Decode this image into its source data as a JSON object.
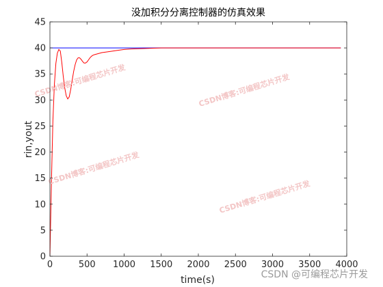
{
  "chart_data": {
    "type": "line",
    "title": "没加积分分离控制器的仿真效果",
    "xlabel": "time(s)",
    "ylabel": "rin,yout",
    "xlim": [
      0,
      4000
    ],
    "ylim": [
      0,
      45
    ],
    "xticks": [
      0,
      500,
      1000,
      1500,
      2000,
      2500,
      3000,
      3500,
      4000
    ],
    "yticks": [
      0,
      5,
      10,
      15,
      20,
      25,
      30,
      35,
      40,
      45
    ],
    "grid": false,
    "series": [
      {
        "color": "#0000ff",
        "x": [
          0,
          3920
        ],
        "y": [
          40,
          40
        ]
      },
      {
        "color": "#ff0000",
        "x": [
          0,
          20,
          40,
          60,
          80,
          100,
          120,
          140,
          160,
          180,
          200,
          220,
          240,
          260,
          280,
          300,
          320,
          340,
          360,
          380,
          400,
          420,
          440,
          460,
          480,
          500,
          520,
          540,
          560,
          580,
          600,
          650,
          700,
          750,
          800,
          900,
          1000,
          1100,
          1200,
          1300,
          1400,
          1500,
          1600,
          1700,
          1800,
          2000,
          2500,
          3000,
          3500,
          3920
        ],
        "y": [
          0,
          14,
          26,
          33,
          37,
          39,
          39.7,
          39.4,
          37.2,
          34.5,
          32.3,
          30.8,
          30.2,
          30.6,
          32,
          33.8,
          35.5,
          36.8,
          37.7,
          38.1,
          38.1,
          37.8,
          37.4,
          37.1,
          37.1,
          37.3,
          37.7,
          38.1,
          38.4,
          38.6,
          38.7,
          38.9,
          39.1,
          39.2,
          39.3,
          39.5,
          39.7,
          39.8,
          39.85,
          39.9,
          39.95,
          40,
          40,
          40,
          40,
          40,
          40,
          40,
          40,
          40
        ]
      }
    ]
  },
  "watermarks": [
    "CSDN博客:可编程芯片开发",
    "CSDN博客:可编程芯片开发",
    "CSDN博客:可编程芯片开发",
    "CSDN博客:可编程芯片开发"
  ],
  "credit": "CSDN @可编程芯片开发"
}
